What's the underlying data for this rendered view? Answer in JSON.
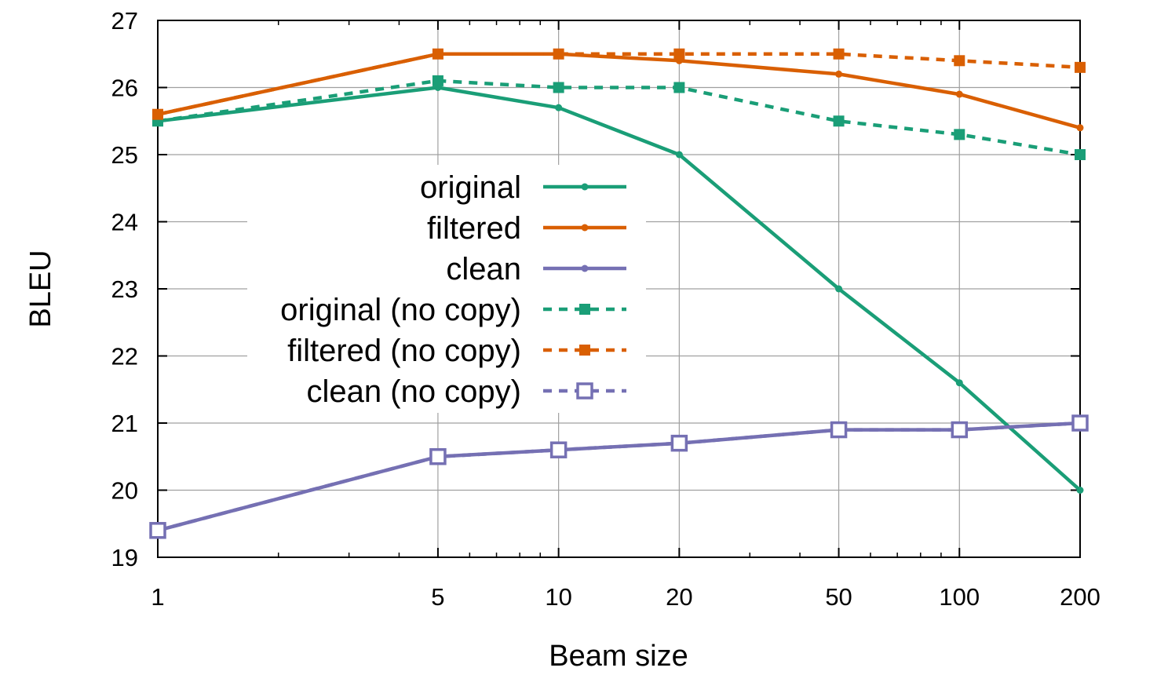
{
  "chart_data": {
    "type": "line",
    "xlabel": "Beam size",
    "ylabel": "BLEU",
    "xscale": "log",
    "xlim": [
      1,
      200
    ],
    "ylim": [
      19,
      27
    ],
    "x_ticks": [
      1,
      5,
      10,
      20,
      50,
      100,
      200
    ],
    "y_ticks": [
      19,
      20,
      21,
      22,
      23,
      24,
      25,
      26,
      27
    ],
    "grid": true,
    "legend_position": "center-left",
    "x": [
      1,
      5,
      10,
      20,
      50,
      100,
      200
    ],
    "series": [
      {
        "name": "original",
        "color": "#1a9e77",
        "dash": "solid",
        "marker": "dot",
        "values": [
          25.5,
          26.0,
          25.7,
          25.0,
          23.0,
          21.6,
          20.0
        ]
      },
      {
        "name": "filtered",
        "color": "#d95f02",
        "dash": "solid",
        "marker": "dot",
        "values": [
          25.6,
          26.5,
          26.5,
          26.4,
          26.2,
          25.9,
          25.4
        ]
      },
      {
        "name": "clean",
        "color": "#7570b3",
        "dash": "solid",
        "marker": "dot",
        "values": [
          19.4,
          20.5,
          20.6,
          20.7,
          20.9,
          20.9,
          21.0
        ]
      },
      {
        "name": "original (no copy)",
        "color": "#1a9e77",
        "dash": "dashed",
        "marker": "filled-square",
        "values": [
          25.5,
          26.1,
          26.0,
          26.0,
          25.5,
          25.3,
          25.0
        ]
      },
      {
        "name": "filtered (no copy)",
        "color": "#d95f02",
        "dash": "dashed",
        "marker": "filled-square",
        "values": [
          25.6,
          26.5,
          26.5,
          26.5,
          26.5,
          26.4,
          26.3
        ]
      },
      {
        "name": "clean (no copy)",
        "color": "#7570b3",
        "dash": "dashed",
        "marker": "open-square",
        "values": [
          19.4,
          20.5,
          20.6,
          20.7,
          20.9,
          20.9,
          21.0
        ]
      }
    ]
  }
}
